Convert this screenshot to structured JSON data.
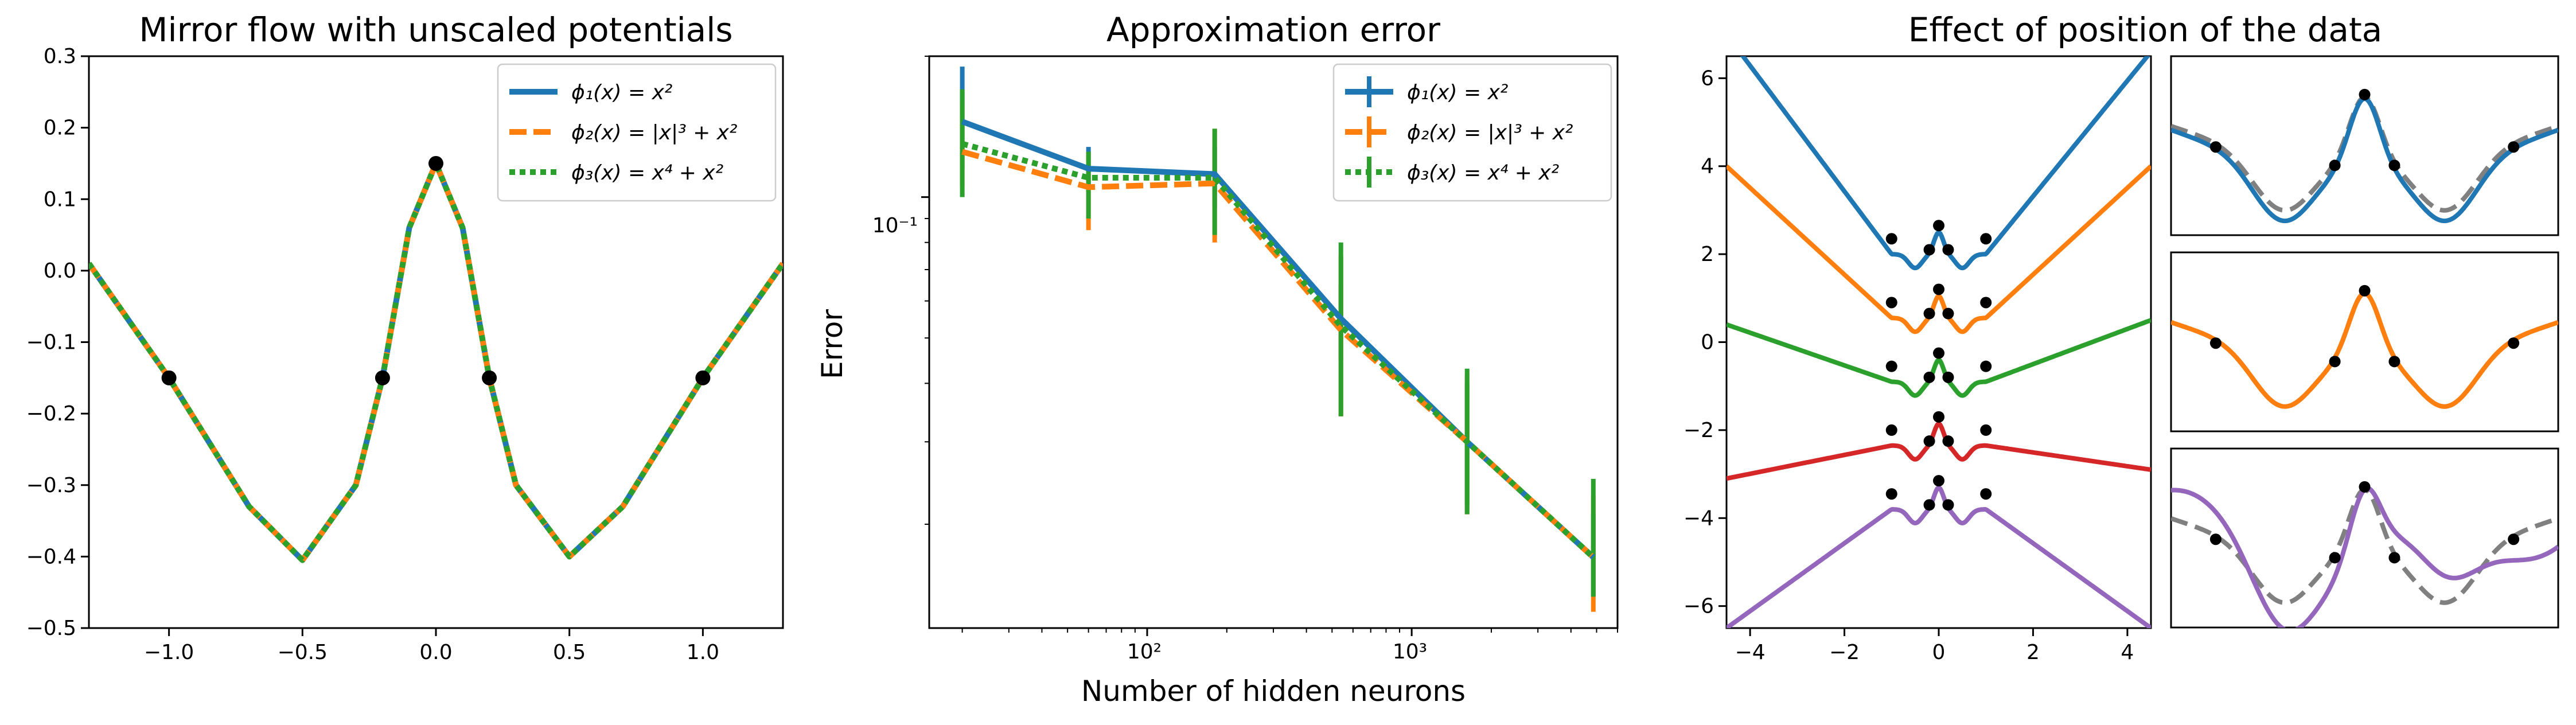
{
  "chart_data": [
    {
      "type": "line",
      "title": "Mirror flow with unscaled potentials",
      "xlabel": "",
      "ylabel": "",
      "xlim": [
        -1.3,
        1.3
      ],
      "ylim": [
        -0.5,
        0.3
      ],
      "xticks": [
        -1.0,
        -0.5,
        0.0,
        0.5,
        1.0
      ],
      "xtick_labels": [
        "−1.0",
        "−0.5",
        "0.0",
        "0.5",
        "1.0"
      ],
      "yticks": [
        0.3,
        0.2,
        0.1,
        0.0,
        -0.1,
        -0.2,
        -0.3,
        -0.4,
        -0.5
      ],
      "ytick_labels": [
        "0.3",
        "0.2",
        "0.1",
        "0.0",
        "−0.1",
        "−0.2",
        "−0.3",
        "−0.4",
        "−0.5"
      ],
      "legend_position": "top-right",
      "series": [
        {
          "name": "ϕ₁(x) = x²",
          "color": "#1f77b4",
          "style": "solid"
        },
        {
          "name": "ϕ₂(x) = |x|³ + x²",
          "color": "#ff7f0e",
          "style": "dashed"
        },
        {
          "name": "ϕ₃(x) = x⁴ + x²",
          "color": "#2ca02c",
          "style": "dotted"
        }
      ],
      "curve": {
        "x": [
          -1.3,
          -1.0,
          -0.7,
          -0.5,
          -0.3,
          -0.2,
          -0.1,
          0.0,
          0.1,
          0.2,
          0.3,
          0.5,
          0.7,
          1.0,
          1.3
        ],
        "y": [
          0.01,
          -0.15,
          -0.33,
          -0.405,
          -0.3,
          -0.15,
          0.06,
          0.15,
          0.06,
          -0.15,
          -0.3,
          -0.4,
          -0.33,
          -0.15,
          0.01
        ]
      },
      "points": {
        "x": [
          -1.0,
          -0.2,
          0.0,
          0.2,
          1.0
        ],
        "y": [
          -0.15,
          -0.15,
          0.15,
          -0.15,
          -0.15
        ]
      }
    },
    {
      "type": "line",
      "title": "Approximation error",
      "xlabel": "Number of hidden neurons",
      "ylabel": "Error",
      "xscale": "log",
      "yscale": "log",
      "xlim": [
        15,
        6000
      ],
      "ylim": [
        0.012,
        0.2
      ],
      "xtick_labels": [
        "10²",
        "10³"
      ],
      "ytick_labels": [
        "10⁻¹"
      ],
      "legend_position": "top-right",
      "x": [
        20,
        60,
        180,
        540,
        1620,
        4860
      ],
      "series": [
        {
          "name": "ϕ₁(x) = x²",
          "color": "#1f77b4",
          "style": "solid",
          "values": [
            0.145,
            0.115,
            0.112,
            0.055,
            0.03,
            0.017
          ],
          "err_low": [
            0.115,
            0.105,
            0.095,
            0.045,
            0.022,
            0.014
          ],
          "err_high": [
            0.19,
            0.128,
            0.128,
            0.065,
            0.04,
            0.021
          ]
        },
        {
          "name": "ϕ₂(x) = |x|³ + x²",
          "color": "#ff7f0e",
          "style": "dashed",
          "values": [
            0.125,
            0.105,
            0.107,
            0.052,
            0.03,
            0.017
          ],
          "err_low": [
            0.105,
            0.085,
            0.08,
            0.034,
            0.021,
            0.013
          ],
          "err_high": [
            0.16,
            0.125,
            0.14,
            0.075,
            0.042,
            0.023
          ]
        },
        {
          "name": "ϕ₃(x) = x⁴ + x²",
          "color": "#2ca02c",
          "style": "dotted",
          "values": [
            0.13,
            0.11,
            0.11,
            0.053,
            0.03,
            0.017
          ],
          "err_low": [
            0.1,
            0.09,
            0.083,
            0.034,
            0.021,
            0.014
          ],
          "err_high": [
            0.17,
            0.125,
            0.14,
            0.08,
            0.043,
            0.025
          ]
        }
      ]
    },
    {
      "type": "line",
      "title": "Effect of position of the data",
      "xlabel": "",
      "ylabel": "",
      "xlim": [
        -4.5,
        4.5
      ],
      "ylim": [
        -6.5,
        6.5
      ],
      "xticks": [
        -4,
        -2,
        0,
        2,
        4
      ],
      "xtick_labels": [
        "−4",
        "−2",
        "0",
        "2",
        "4"
      ],
      "yticks": [
        6,
        4,
        2,
        0,
        -2,
        -4,
        -6
      ],
      "ytick_labels": [
        "6",
        "4",
        "2",
        "0",
        "−2",
        "−4",
        "−6"
      ],
      "series": [
        {
          "color": "#1f77b4",
          "offset": 2.0,
          "left_end": 7.0,
          "right_end": 6.6
        },
        {
          "color": "#ff7f0e",
          "offset": 0.55,
          "left_end": 4.0,
          "right_end": 4.0
        },
        {
          "color": "#2ca02c",
          "offset": -0.9,
          "left_end": 0.4,
          "right_end": 0.5
        },
        {
          "color": "#d62728",
          "offset": -2.35,
          "left_end": -3.1,
          "right_end": -2.9
        },
        {
          "color": "#9467bd",
          "offset": -3.8,
          "left_end": -6.5,
          "right_end": -6.5
        }
      ],
      "data_points_x": [
        -1.0,
        -0.2,
        0.0,
        0.2,
        1.0
      ]
    },
    {
      "type": "line",
      "title": "",
      "small_multiples": [
        {
          "color": "#1f77b4",
          "reference": "#808080"
        },
        {
          "color": "#ff7f0e",
          "reference": "#808080"
        },
        {
          "color": "#9467bd",
          "reference": "#808080"
        }
      ]
    }
  ]
}
